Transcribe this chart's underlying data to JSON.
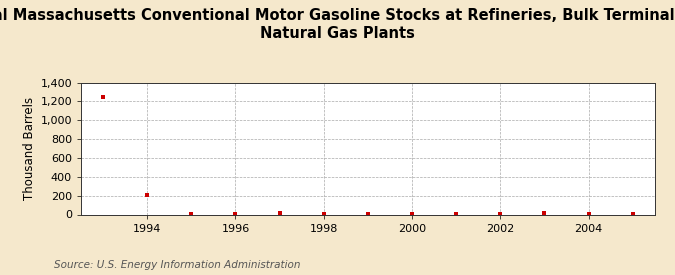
{
  "title_line1": "Annual Massachusetts Conventional Motor Gasoline Stocks at Refineries, Bulk Terminals, and",
  "title_line2": "Natural Gas Plants",
  "ylabel": "Thousand Barrels",
  "source": "Source: U.S. Energy Information Administration",
  "background_color": "#f5e8cc",
  "plot_bg_color": "#ffffff",
  "x_values": [
    1993,
    1994,
    1995,
    1996,
    1997,
    1998,
    1999,
    2000,
    2001,
    2002,
    2003,
    2004,
    2005
  ],
  "y_values": [
    1250,
    210,
    10,
    5,
    20,
    5,
    5,
    5,
    5,
    5,
    20,
    5,
    5
  ],
  "marker_color": "#cc0000",
  "xlim": [
    1992.5,
    2005.5
  ],
  "ylim": [
    0,
    1400
  ],
  "yticks": [
    0,
    200,
    400,
    600,
    800,
    1000,
    1200,
    1400
  ],
  "xticks": [
    1994,
    1996,
    1998,
    2000,
    2002,
    2004
  ],
  "grid_color": "#aaaaaa",
  "title_fontsize": 10.5,
  "axis_fontsize": 8.5,
  "tick_fontsize": 8,
  "source_fontsize": 7.5
}
